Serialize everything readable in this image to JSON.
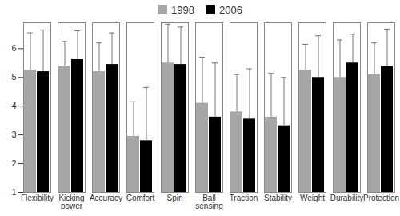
{
  "chart_data": {
    "type": "bar",
    "categories": [
      "Flexibility",
      "Kicking power",
      "Accuracy",
      "Comfort",
      "Spin",
      "Ball sensing",
      "Traction",
      "Stability",
      "Weight",
      "Durability",
      "Protection"
    ],
    "series": [
      {
        "name": "1998",
        "color": "#a6a6a6",
        "values": [
          5.25,
          5.4,
          5.2,
          2.95,
          5.5,
          4.1,
          3.8,
          3.62,
          5.25,
          5.0,
          5.1
        ],
        "errors": [
          1.3,
          0.85,
          1.0,
          1.2,
          1.35,
          1.6,
          1.3,
          1.52,
          0.9,
          1.3,
          1.1
        ]
      },
      {
        "name": "2006",
        "color": "#000000",
        "values": [
          5.2,
          5.62,
          5.45,
          2.8,
          5.45,
          3.62,
          3.55,
          3.32,
          5.0,
          5.5,
          5.38
        ],
        "errors": [
          1.45,
          1.0,
          1.1,
          1.85,
          1.3,
          1.88,
          1.75,
          1.68,
          1.45,
          1.0,
          1.3
        ]
      }
    ],
    "ylim": [
      1,
      6.9
    ],
    "yticks": [
      1,
      2,
      3,
      4,
      5,
      6
    ],
    "grid": false,
    "legend": "top"
  }
}
